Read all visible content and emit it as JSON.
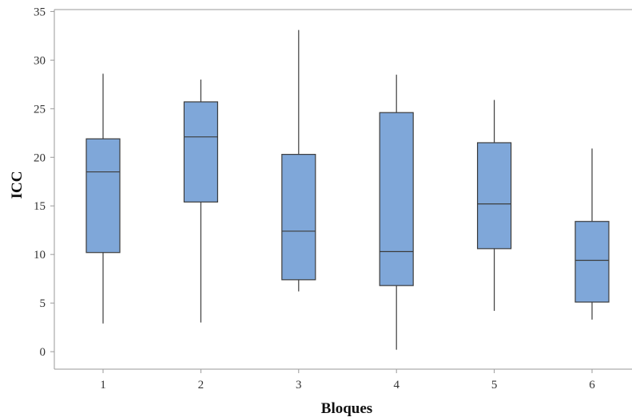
{
  "chart_data": {
    "type": "boxplot",
    "xlabel": "Bloques",
    "ylabel": "ICC",
    "ylim": [
      -1.8,
      35.2
    ],
    "yticks": [
      0,
      5,
      10,
      15,
      20,
      25,
      30,
      35
    ],
    "grid": false,
    "legend": "none",
    "box_color": "#7fa7d9",
    "line_color": "#3c3c3c",
    "frame_color": "#9a9a9a",
    "categories": [
      "1",
      "2",
      "3",
      "4",
      "5",
      "6"
    ],
    "boxes": [
      {
        "category": "1",
        "min": 2.9,
        "q1": 10.2,
        "median": 18.5,
        "q3": 21.9,
        "max": 28.6
      },
      {
        "category": "2",
        "min": 3.0,
        "q1": 15.4,
        "median": 22.1,
        "q3": 25.7,
        "max": 28.0
      },
      {
        "category": "3",
        "min": 6.2,
        "q1": 7.4,
        "median": 12.4,
        "q3": 20.3,
        "max": 33.1
      },
      {
        "category": "4",
        "min": 0.2,
        "q1": 6.8,
        "median": 10.3,
        "q3": 24.6,
        "max": 28.5
      },
      {
        "category": "5",
        "min": 4.2,
        "q1": 10.6,
        "median": 15.2,
        "q3": 21.5,
        "max": 25.9
      },
      {
        "category": "6",
        "min": 3.3,
        "q1": 5.1,
        "median": 9.4,
        "q3": 13.4,
        "max": 20.9
      }
    ]
  }
}
